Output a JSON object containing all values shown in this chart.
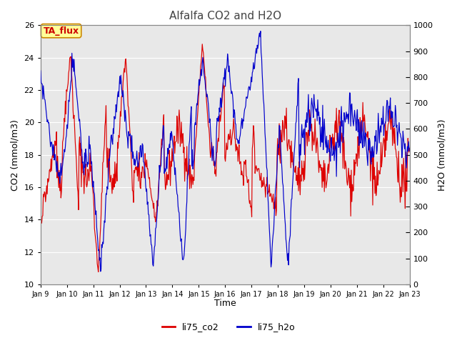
{
  "title": "Alfalfa CO2 and H2O",
  "xlabel": "Time",
  "ylabel_left": "CO2 (mmol/m3)",
  "ylabel_right": "H2O (mmol/m3)",
  "annotation": "TA_flux",
  "xlim_days": [
    9,
    23
  ],
  "ylim_left": [
    10,
    26
  ],
  "ylim_right": [
    0,
    1000
  ],
  "yticks_left": [
    10,
    12,
    14,
    16,
    18,
    20,
    22,
    24,
    26
  ],
  "yticks_right": [
    0,
    100,
    200,
    300,
    400,
    500,
    600,
    700,
    800,
    900,
    1000
  ],
  "xtick_labels": [
    "Jan 9",
    "Jan 10",
    "Jan 11",
    "Jan 12",
    "Jan 13",
    "Jan 14",
    "Jan 15",
    "Jan 16",
    "Jan 17",
    "Jan 18",
    "Jan 19",
    "Jan 20",
    "Jan 21",
    "Jan 22",
    "Jan 23"
  ],
  "co2_color": "#dd0000",
  "h2o_color": "#0000cc",
  "background_color": "#e8e8e8",
  "annotation_bg": "#ffff99",
  "annotation_border": "#cc8800",
  "legend_co2": "li75_co2",
  "legend_h2o": "li75_h2o",
  "title_fontsize": 11,
  "axis_label_fontsize": 9,
  "tick_fontsize": 8,
  "legend_fontsize": 9
}
